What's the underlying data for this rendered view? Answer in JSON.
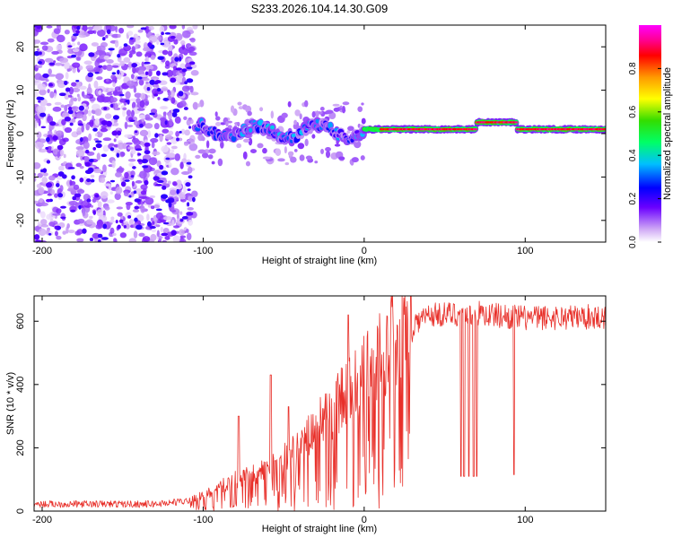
{
  "chart_data": [
    {
      "type": "heatmap",
      "title": "S233.2026.104.14.30.G09",
      "xlabel": "Height of straight line (km)",
      "ylabel": "Frequency (Hz)",
      "xlim": [
        -205,
        150
      ],
      "ylim": [
        -25,
        25
      ],
      "xticks": [
        -200,
        -100,
        0,
        100
      ],
      "yticks": [
        -20,
        -10,
        0,
        10,
        20
      ],
      "colorbar": {
        "label": "Normalized spectral amplitude",
        "range": [
          0,
          1
        ],
        "ticks": [
          0.0,
          0.2,
          0.4,
          0.6,
          0.8
        ],
        "tick_labels": [
          "0.0",
          "0.2",
          "0.4",
          "0.6",
          "0.8"
        ]
      },
      "regions": [
        {
          "name": "noise",
          "x_range": [
            -205,
            -105
          ],
          "y_range": [
            -25,
            25
          ],
          "amplitude": 0.1
        },
        {
          "name": "weak-signal",
          "x_range": [
            -105,
            0
          ],
          "freq_hz": 0.5,
          "amplitude": 0.25
        },
        {
          "name": "strong-signal",
          "x_range": [
            0,
            150
          ],
          "freq_hz": 1.0,
          "amplitude": 0.95
        }
      ]
    },
    {
      "type": "line",
      "title": "",
      "xlabel": "Height of straight line (km)",
      "ylabel": "SNR (10 * v/v)",
      "xlim": [
        -205,
        150
      ],
      "ylim": [
        0,
        680
      ],
      "xticks": [
        -200,
        -100,
        0,
        100
      ],
      "yticks": [
        0,
        200,
        400,
        600
      ],
      "series": [
        {
          "name": "SNR",
          "color": "#e8302a",
          "profile": [
            [
              -205,
              20
            ],
            [
              -130,
              20
            ],
            [
              -110,
              30
            ],
            [
              -95,
              60
            ],
            [
              -80,
              100
            ],
            [
              -60,
              130
            ],
            [
              -40,
              200
            ],
            [
              -20,
              320
            ],
            [
              0,
              430
            ],
            [
              20,
              560
            ],
            [
              40,
              620
            ],
            [
              70,
              625
            ],
            [
              100,
              610
            ],
            [
              150,
              615
            ]
          ],
          "spikes": [
            [
              -78,
              300
            ],
            [
              -58,
              430
            ],
            [
              -47,
              330
            ],
            [
              -10,
              620
            ]
          ],
          "dips": [
            [
              60,
              110
            ],
            [
              62,
              110
            ],
            [
              65,
              110
            ],
            [
              68,
              110
            ],
            [
              70,
              110
            ],
            [
              93,
              115
            ]
          ]
        }
      ]
    }
  ]
}
